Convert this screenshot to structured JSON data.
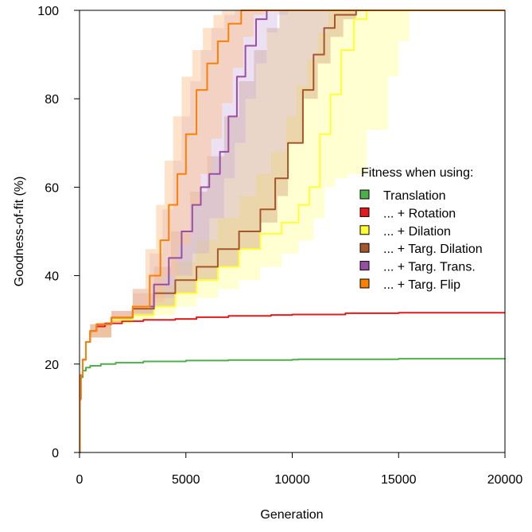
{
  "chart_data": {
    "type": "line",
    "title": "",
    "xlabel": "Generation",
    "ylabel": "Goodness-of-fit (%)",
    "xlim": [
      0,
      20000
    ],
    "ylim": [
      0,
      100
    ],
    "x_ticks": [
      0,
      5000,
      10000,
      15000,
      20000
    ],
    "y_ticks": [
      0,
      20,
      40,
      60,
      80,
      100
    ],
    "grid": false,
    "legend": {
      "position": "right",
      "title": "Fitness when using:"
    },
    "series": [
      {
        "name": "Translation",
        "color": "#4daf4a",
        "band": false,
        "points": [
          [
            0,
            0
          ],
          [
            20,
            12
          ],
          [
            60,
            17
          ],
          [
            150,
            18.5
          ],
          [
            300,
            19.2
          ],
          [
            500,
            19.6
          ],
          [
            1000,
            20
          ],
          [
            1700,
            20.3
          ],
          [
            3000,
            20.6
          ],
          [
            5000,
            20.8
          ],
          [
            7000,
            20.9
          ],
          [
            10000,
            21
          ],
          [
            10300,
            21.1
          ],
          [
            15000,
            21.2
          ],
          [
            20000,
            21.3
          ]
        ]
      },
      {
        "name": "... + Rotation",
        "color": "#e41a1c",
        "band": false,
        "points": [
          [
            0,
            0
          ],
          [
            20,
            12
          ],
          [
            60,
            17.5
          ],
          [
            150,
            21
          ],
          [
            300,
            25
          ],
          [
            500,
            27.5
          ],
          [
            800,
            28.5
          ],
          [
            1200,
            29.2
          ],
          [
            2000,
            29.7
          ],
          [
            3000,
            30
          ],
          [
            4500,
            30.2
          ],
          [
            5500,
            30.6
          ],
          [
            7000,
            30.9
          ],
          [
            9000,
            31.1
          ],
          [
            10000,
            31.2
          ],
          [
            12500,
            31.5
          ],
          [
            15000,
            31.6
          ],
          [
            20000,
            31.6
          ]
        ]
      },
      {
        "name": "... + Dilation",
        "color": "#ffff33",
        "band": true,
        "band_color": "#ffff99",
        "band_opacity": 0.45,
        "points": [
          [
            0,
            0
          ],
          [
            20,
            12
          ],
          [
            60,
            17.5
          ],
          [
            150,
            21
          ],
          [
            300,
            25
          ],
          [
            500,
            27.5
          ],
          [
            800,
            29
          ],
          [
            1500,
            30
          ],
          [
            2500,
            31
          ],
          [
            3500,
            33
          ],
          [
            4500,
            36
          ],
          [
            5500,
            39
          ],
          [
            6500,
            42
          ],
          [
            7500,
            46
          ],
          [
            8500,
            49.5
          ],
          [
            9500,
            52
          ],
          [
            10300,
            56
          ],
          [
            10800,
            60
          ],
          [
            11300,
            72
          ],
          [
            11800,
            81
          ],
          [
            12300,
            91
          ],
          [
            12900,
            98
          ],
          [
            13500,
            100
          ],
          [
            20000,
            100
          ]
        ],
        "lower": [
          [
            0,
            0
          ],
          [
            500,
            26
          ],
          [
            1500,
            29
          ],
          [
            2500,
            30
          ],
          [
            3500,
            31
          ],
          [
            4500,
            33
          ],
          [
            5500,
            35
          ],
          [
            6500,
            37
          ],
          [
            7500,
            39
          ],
          [
            8500,
            42
          ],
          [
            9500,
            45
          ],
          [
            10300,
            48
          ],
          [
            11000,
            53
          ],
          [
            11500,
            60
          ],
          [
            12000,
            62
          ],
          [
            12600,
            63
          ],
          [
            13500,
            73
          ],
          [
            14500,
            85
          ],
          [
            15000,
            93
          ],
          [
            15500,
            100
          ],
          [
            20000,
            100
          ]
        ],
        "upper": [
          [
            0,
            0
          ],
          [
            500,
            29
          ],
          [
            1500,
            31
          ],
          [
            2500,
            33
          ],
          [
            3500,
            38
          ],
          [
            4500,
            43
          ],
          [
            5500,
            48
          ],
          [
            6500,
            53
          ],
          [
            7500,
            58
          ],
          [
            8300,
            63
          ],
          [
            9000,
            68
          ],
          [
            9700,
            76
          ],
          [
            10200,
            83
          ],
          [
            10700,
            89
          ],
          [
            11200,
            95
          ],
          [
            11700,
            100
          ],
          [
            20000,
            100
          ]
        ]
      },
      {
        "name": "... + Targ. Dilation",
        "color": "#a65628",
        "band": true,
        "band_color": "#c28a60",
        "band_opacity": 0.35,
        "points": [
          [
            0,
            0
          ],
          [
            20,
            12
          ],
          [
            60,
            17.5
          ],
          [
            150,
            21
          ],
          [
            300,
            25
          ],
          [
            500,
            27.5
          ],
          [
            800,
            29
          ],
          [
            1500,
            30.5
          ],
          [
            2500,
            32.5
          ],
          [
            3500,
            36
          ],
          [
            4500,
            39
          ],
          [
            5500,
            42
          ],
          [
            6500,
            46
          ],
          [
            7500,
            50
          ],
          [
            8500,
            55
          ],
          [
            9200,
            62
          ],
          [
            9800,
            70
          ],
          [
            10500,
            82
          ],
          [
            11000,
            90
          ],
          [
            11500,
            96
          ],
          [
            12000,
            99
          ],
          [
            13000,
            100
          ],
          [
            20000,
            100
          ]
        ],
        "lower": [
          [
            0,
            0
          ],
          [
            500,
            26
          ],
          [
            1500,
            29.5
          ],
          [
            2500,
            31
          ],
          [
            3500,
            33
          ],
          [
            4500,
            36
          ],
          [
            5500,
            39
          ],
          [
            6500,
            42
          ],
          [
            7500,
            46
          ],
          [
            8500,
            52
          ],
          [
            9300,
            58
          ],
          [
            9800,
            70
          ],
          [
            10500,
            80
          ],
          [
            11200,
            88
          ],
          [
            11800,
            94
          ],
          [
            12400,
            98
          ],
          [
            13000,
            100
          ],
          [
            20000,
            100
          ]
        ],
        "upper": [
          [
            0,
            0
          ],
          [
            500,
            29
          ],
          [
            1500,
            32
          ],
          [
            2500,
            36
          ],
          [
            3500,
            42
          ],
          [
            4300,
            50
          ],
          [
            5200,
            59
          ],
          [
            6000,
            67
          ],
          [
            6800,
            76
          ],
          [
            7500,
            84
          ],
          [
            8200,
            91
          ],
          [
            8800,
            96
          ],
          [
            9400,
            100
          ],
          [
            20000,
            100
          ]
        ]
      },
      {
        "name": "... + Targ. Trans.",
        "color": "#984ea3",
        "band": true,
        "band_color": "#c9a8d9",
        "band_opacity": 0.35,
        "points": [
          [
            0,
            0
          ],
          [
            20,
            12
          ],
          [
            60,
            17.5
          ],
          [
            150,
            21
          ],
          [
            300,
            25
          ],
          [
            500,
            27.5
          ],
          [
            800,
            29
          ],
          [
            1500,
            30.5
          ],
          [
            2500,
            33
          ],
          [
            3500,
            38
          ],
          [
            4200,
            44
          ],
          [
            4800,
            50
          ],
          [
            5300,
            56
          ],
          [
            5700,
            60
          ],
          [
            6100,
            63
          ],
          [
            6600,
            68
          ],
          [
            7000,
            76
          ],
          [
            7400,
            85
          ],
          [
            7800,
            92
          ],
          [
            8300,
            98
          ],
          [
            8800,
            100
          ],
          [
            20000,
            100
          ]
        ],
        "lower": [
          [
            0,
            0
          ],
          [
            500,
            26
          ],
          [
            1500,
            29.5
          ],
          [
            2500,
            31.5
          ],
          [
            3500,
            35
          ],
          [
            4500,
            40
          ],
          [
            5300,
            45
          ],
          [
            6100,
            53
          ],
          [
            6800,
            62
          ],
          [
            7300,
            70
          ],
          [
            7800,
            80
          ],
          [
            8300,
            88
          ],
          [
            8800,
            95
          ],
          [
            9300,
            99
          ],
          [
            9800,
            100
          ],
          [
            20000,
            100
          ]
        ],
        "upper": [
          [
            0,
            0
          ],
          [
            500,
            29
          ],
          [
            1500,
            32
          ],
          [
            2500,
            37
          ],
          [
            3300,
            45
          ],
          [
            3900,
            55
          ],
          [
            4400,
            66
          ],
          [
            4800,
            76
          ],
          [
            5200,
            84
          ],
          [
            5700,
            91
          ],
          [
            6200,
            96
          ],
          [
            6800,
            99
          ],
          [
            7300,
            100
          ],
          [
            20000,
            100
          ]
        ]
      },
      {
        "name": "... + Targ. Flip",
        "color": "#ff7f00",
        "band": true,
        "band_color": "#fdc089",
        "band_opacity": 0.45,
        "points": [
          [
            0,
            0
          ],
          [
            20,
            12
          ],
          [
            60,
            17.5
          ],
          [
            150,
            21
          ],
          [
            300,
            25
          ],
          [
            500,
            27.5
          ],
          [
            800,
            29
          ],
          [
            1500,
            30.5
          ],
          [
            2500,
            33
          ],
          [
            3300,
            40
          ],
          [
            3800,
            48
          ],
          [
            4200,
            56
          ],
          [
            4600,
            63
          ],
          [
            5000,
            72
          ],
          [
            5500,
            82
          ],
          [
            6000,
            88
          ],
          [
            6500,
            93
          ],
          [
            7000,
            97
          ],
          [
            7600,
            100
          ],
          [
            20000,
            100
          ]
        ],
        "lower": [
          [
            0,
            0
          ],
          [
            500,
            26
          ],
          [
            1500,
            29.5
          ],
          [
            2500,
            31.5
          ],
          [
            3300,
            34
          ],
          [
            4000,
            40
          ],
          [
            4600,
            47
          ],
          [
            5200,
            56
          ],
          [
            5700,
            63
          ],
          [
            6200,
            71
          ],
          [
            6700,
            79
          ],
          [
            7200,
            87
          ],
          [
            7700,
            94
          ],
          [
            8200,
            99
          ],
          [
            8700,
            100
          ],
          [
            20000,
            100
          ]
        ],
        "upper": [
          [
            0,
            0
          ],
          [
            500,
            29
          ],
          [
            1500,
            32
          ],
          [
            2500,
            37
          ],
          [
            3100,
            46
          ],
          [
            3600,
            56
          ],
          [
            4000,
            66
          ],
          [
            4400,
            76
          ],
          [
            4800,
            85
          ],
          [
            5300,
            91
          ],
          [
            5800,
            96
          ],
          [
            6300,
            99
          ],
          [
            6700,
            100
          ],
          [
            20000,
            100
          ]
        ]
      }
    ]
  }
}
